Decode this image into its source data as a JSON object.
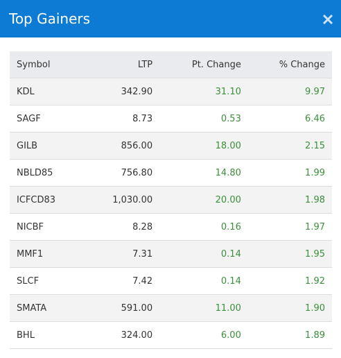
{
  "header": {
    "title": "Top Gainers"
  },
  "table": {
    "columns": [
      "Symbol",
      "LTP",
      "Pt. Change",
      "% Change"
    ],
    "rows": [
      [
        "KDL",
        "342.90",
        "31.10",
        "9.97"
      ],
      [
        "SAGF",
        "8.73",
        "0.53",
        "6.46"
      ],
      [
        "GILB",
        "856.00",
        "18.00",
        "2.15"
      ],
      [
        "NBLD85",
        "756.80",
        "14.80",
        "1.99"
      ],
      [
        "ICFCD83",
        "1,030.00",
        "20.00",
        "1.98"
      ],
      [
        "NICBF",
        "8.28",
        "0.16",
        "1.97"
      ],
      [
        "MMF1",
        "7.31",
        "0.14",
        "1.95"
      ],
      [
        "SLCF",
        "7.42",
        "0.14",
        "1.92"
      ],
      [
        "SMATA",
        "591.00",
        "11.00",
        "1.90"
      ],
      [
        "BHL",
        "324.00",
        "6.00",
        "1.89"
      ]
    ]
  }
}
